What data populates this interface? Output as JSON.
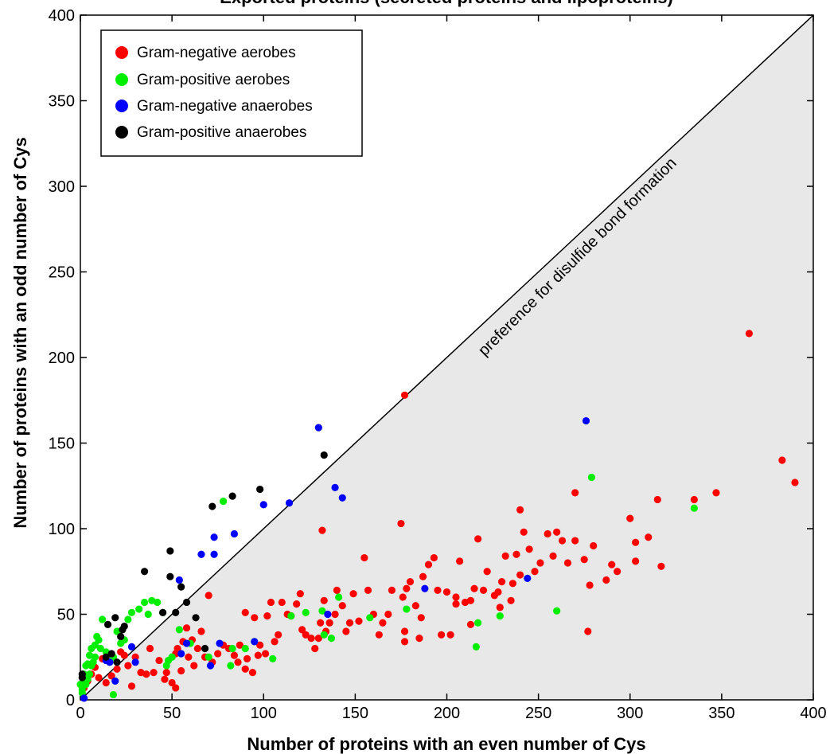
{
  "chart_data": {
    "type": "scatter",
    "title": "Exported proteins (secreted proteins and lipoproteins)",
    "xlabel": "Number of proteins with an even number of Cys",
    "ylabel": "Number of proteins with an odd number of Cys",
    "xlim": [
      0,
      400
    ],
    "ylim": [
      0,
      400
    ],
    "xticks": [
      "0",
      "50",
      "100",
      "150",
      "200",
      "250",
      "300",
      "350",
      "400"
    ],
    "yticks": [
      "0",
      "50",
      "100",
      "150",
      "200",
      "250",
      "300",
      "350",
      "400"
    ],
    "grid": false,
    "legend_position": "top-left",
    "annotation": "preference for disulfide bond formation",
    "diagonal_line": [
      [
        0,
        0
      ],
      [
        400,
        400
      ]
    ],
    "shaded_region": "below diagonal",
    "colors": {
      "shade": "#e8e8e8"
    },
    "series": [
      {
        "name": "Gram-negative aerobes",
        "color": "#ff0000",
        "points": [
          [
            365,
            214
          ],
          [
            383,
            140
          ],
          [
            390,
            127
          ],
          [
            177,
            178
          ],
          [
            132,
            99
          ],
          [
            347,
            121
          ],
          [
            335,
            117
          ],
          [
            315,
            117
          ],
          [
            310,
            95
          ],
          [
            303,
            92
          ],
          [
            300,
            106
          ],
          [
            317,
            78
          ],
          [
            303,
            81
          ],
          [
            290,
            79
          ],
          [
            293,
            75
          ],
          [
            287,
            70
          ],
          [
            278,
            67
          ],
          [
            277,
            40
          ],
          [
            280,
            90
          ],
          [
            275,
            82
          ],
          [
            270,
            121
          ],
          [
            270,
            93
          ],
          [
            263,
            93
          ],
          [
            266,
            80
          ],
          [
            260,
            98
          ],
          [
            258,
            84
          ],
          [
            255,
            97
          ],
          [
            251,
            80
          ],
          [
            245,
            88
          ],
          [
            248,
            75
          ],
          [
            240,
            111
          ],
          [
            242,
            98
          ],
          [
            240,
            73
          ],
          [
            238,
            85
          ],
          [
            236,
            68
          ],
          [
            235,
            58
          ],
          [
            232,
            84
          ],
          [
            230,
            69
          ],
          [
            228,
            63
          ],
          [
            229,
            54
          ],
          [
            226,
            61
          ],
          [
            222,
            75
          ],
          [
            220,
            64
          ],
          [
            217,
            94
          ],
          [
            215,
            65
          ],
          [
            213,
            58
          ],
          [
            213,
            44
          ],
          [
            210,
            57
          ],
          [
            207,
            81
          ],
          [
            205,
            60
          ],
          [
            205,
            56
          ],
          [
            200,
            63
          ],
          [
            202,
            38
          ],
          [
            197,
            38
          ],
          [
            195,
            64
          ],
          [
            193,
            83
          ],
          [
            190,
            79
          ],
          [
            187,
            72
          ],
          [
            186,
            48
          ],
          [
            185,
            36
          ],
          [
            183,
            55
          ],
          [
            180,
            69
          ],
          [
            178,
            65
          ],
          [
            176,
            60
          ],
          [
            177,
            40
          ],
          [
            177,
            34
          ],
          [
            175,
            103
          ],
          [
            170,
            64
          ],
          [
            168,
            50
          ],
          [
            165,
            45
          ],
          [
            163,
            38
          ],
          [
            160,
            50
          ],
          [
            157,
            64
          ],
          [
            155,
            83
          ],
          [
            152,
            46
          ],
          [
            149,
            62
          ],
          [
            147,
            45
          ],
          [
            145,
            40
          ],
          [
            143,
            55
          ],
          [
            140,
            64
          ],
          [
            139,
            50
          ],
          [
            136,
            45
          ],
          [
            134,
            40
          ],
          [
            133,
            58
          ],
          [
            131,
            45
          ],
          [
            130,
            36
          ],
          [
            128,
            30
          ],
          [
            126,
            36
          ],
          [
            123,
            38
          ],
          [
            121,
            41
          ],
          [
            120,
            62
          ],
          [
            118,
            56
          ],
          [
            115,
            49
          ],
          [
            113,
            50
          ],
          [
            110,
            57
          ],
          [
            108,
            38
          ],
          [
            106,
            34
          ],
          [
            104,
            57
          ],
          [
            102,
            49
          ],
          [
            101,
            27
          ],
          [
            98,
            32
          ],
          [
            97,
            26
          ],
          [
            95,
            48
          ],
          [
            94,
            16
          ],
          [
            91,
            24
          ],
          [
            90,
            18
          ],
          [
            90,
            51
          ],
          [
            87,
            32
          ],
          [
            86,
            22
          ],
          [
            84,
            26
          ],
          [
            81,
            30
          ],
          [
            78,
            32
          ],
          [
            75,
            27
          ],
          [
            72,
            22
          ],
          [
            70,
            61
          ],
          [
            68,
            25
          ],
          [
            66,
            40
          ],
          [
            64,
            30
          ],
          [
            62,
            20
          ],
          [
            61,
            35
          ],
          [
            59,
            25
          ],
          [
            58,
            42
          ],
          [
            56,
            34
          ],
          [
            55,
            17
          ],
          [
            53,
            30
          ],
          [
            52,
            27
          ],
          [
            52,
            7
          ],
          [
            50,
            10
          ],
          [
            47,
            16
          ],
          [
            46,
            12
          ],
          [
            43,
            23
          ],
          [
            40,
            16
          ],
          [
            38,
            30
          ],
          [
            36,
            15
          ],
          [
            33,
            16
          ],
          [
            30,
            25
          ],
          [
            28,
            8
          ],
          [
            26,
            20
          ],
          [
            24,
            26
          ],
          [
            22,
            28
          ],
          [
            20,
            18
          ],
          [
            17,
            14
          ],
          [
            14,
            10
          ],
          [
            12,
            24
          ],
          [
            10,
            13
          ],
          [
            8,
            19
          ],
          [
            6,
            15
          ],
          [
            4,
            11
          ],
          [
            2,
            7
          ]
        ]
      },
      {
        "name": "Gram-positive aerobes",
        "color": "#00ee00",
        "points": [
          [
            78,
            116
          ],
          [
            279,
            130
          ],
          [
            335,
            112
          ],
          [
            260,
            52
          ],
          [
            229,
            49
          ],
          [
            216,
            31
          ],
          [
            217,
            45
          ],
          [
            178,
            53
          ],
          [
            158,
            48
          ],
          [
            141,
            60
          ],
          [
            132,
            52
          ],
          [
            133,
            38
          ],
          [
            137,
            36
          ],
          [
            123,
            51
          ],
          [
            115,
            49
          ],
          [
            105,
            24
          ],
          [
            95,
            34
          ],
          [
            90,
            30
          ],
          [
            83,
            30
          ],
          [
            82,
            20
          ],
          [
            70,
            25
          ],
          [
            60,
            33
          ],
          [
            54,
            41
          ],
          [
            50,
            25
          ],
          [
            48,
            23
          ],
          [
            47,
            20
          ],
          [
            45,
            51
          ],
          [
            42,
            57
          ],
          [
            39,
            58
          ],
          [
            35,
            57
          ],
          [
            37,
            50
          ],
          [
            32,
            53
          ],
          [
            28,
            51
          ],
          [
            26,
            47
          ],
          [
            24,
            35
          ],
          [
            22,
            33
          ],
          [
            20,
            40
          ],
          [
            18,
            25
          ],
          [
            16,
            22
          ],
          [
            14,
            28
          ],
          [
            12,
            47
          ],
          [
            11,
            30
          ],
          [
            10,
            35
          ],
          [
            9,
            37
          ],
          [
            8,
            32
          ],
          [
            8,
            25
          ],
          [
            7,
            22
          ],
          [
            6,
            30
          ],
          [
            6,
            20
          ],
          [
            5,
            26
          ],
          [
            5,
            15
          ],
          [
            4,
            21
          ],
          [
            4,
            12
          ],
          [
            3,
            20
          ],
          [
            3,
            9
          ],
          [
            2,
            15
          ],
          [
            2,
            10
          ],
          [
            1,
            6
          ],
          [
            1,
            4
          ],
          [
            0,
            9
          ],
          [
            18,
            3
          ]
        ]
      },
      {
        "name": "Gram-negative anaerobes",
        "color": "#0000ff",
        "points": [
          [
            130,
            159
          ],
          [
            276,
            163
          ],
          [
            139,
            124
          ],
          [
            143,
            118
          ],
          [
            114,
            115
          ],
          [
            100,
            114
          ],
          [
            84,
            97
          ],
          [
            73,
            95
          ],
          [
            73,
            85
          ],
          [
            66,
            85
          ],
          [
            54,
            70
          ],
          [
            188,
            65
          ],
          [
            244,
            71
          ],
          [
            135,
            50
          ],
          [
            95,
            34
          ],
          [
            76,
            33
          ],
          [
            58,
            33
          ],
          [
            55,
            27
          ],
          [
            71,
            20
          ],
          [
            30,
            22
          ],
          [
            28,
            31
          ],
          [
            19,
            11
          ],
          [
            16,
            22
          ],
          [
            14,
            23
          ],
          [
            2,
            1
          ]
        ]
      },
      {
        "name": "Gram-positive anaerobes",
        "color": "#000000",
        "points": [
          [
            133,
            143
          ],
          [
            98,
            123
          ],
          [
            83,
            119
          ],
          [
            72,
            113
          ],
          [
            35,
            75
          ],
          [
            49,
            87
          ],
          [
            49,
            72
          ],
          [
            55,
            66
          ],
          [
            58,
            57
          ],
          [
            45,
            51
          ],
          [
            52,
            51
          ],
          [
            63,
            48
          ],
          [
            24,
            43
          ],
          [
            22,
            37
          ],
          [
            19,
            48
          ],
          [
            15,
            44
          ],
          [
            23,
            41
          ],
          [
            17,
            27
          ],
          [
            14,
            25
          ],
          [
            20,
            22
          ],
          [
            1,
            13
          ],
          [
            1,
            15
          ],
          [
            68,
            30
          ]
        ]
      }
    ]
  }
}
